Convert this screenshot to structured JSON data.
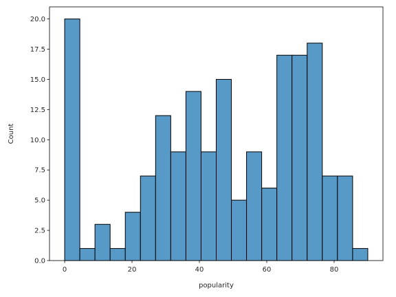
{
  "chart_data": {
    "type": "bar",
    "subtype": "histogram",
    "xlabel": "popularity",
    "ylabel": "Count",
    "xlim": [
      -4.5,
      94.5
    ],
    "ylim": [
      0,
      21
    ],
    "bin_width": 4.5,
    "bin_start": 0,
    "values": [
      20,
      1,
      3,
      1,
      4,
      7,
      12,
      9,
      14,
      9,
      15,
      5,
      9,
      6,
      17,
      17,
      18,
      7,
      7,
      1
    ],
    "x_ticks": [
      0,
      20,
      40,
      60,
      80
    ],
    "x_tick_labels": [
      "0",
      "20",
      "40",
      "60",
      "80"
    ],
    "y_ticks": [
      0,
      2.5,
      5,
      7.5,
      10,
      12.5,
      15,
      17.5,
      20
    ],
    "y_tick_labels": [
      "0.0",
      "2.5",
      "5.0",
      "7.5",
      "10.0",
      "12.5",
      "15.0",
      "17.5",
      "20.0"
    ],
    "bar_color": "#5799c7",
    "edge_color": "#000000",
    "grid": false
  }
}
